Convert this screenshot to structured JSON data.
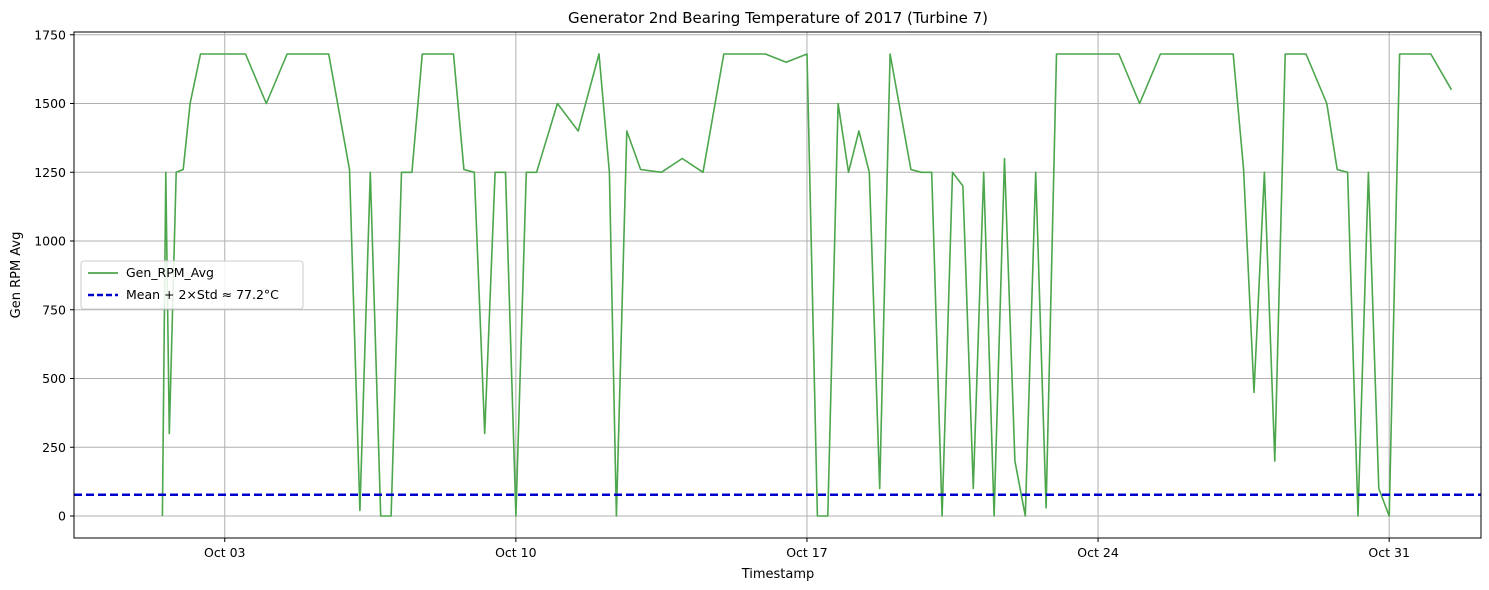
{
  "chart_data": {
    "type": "line",
    "title": "Generator 2nd Bearing Temperature of 2017 (Turbine 7)",
    "xlabel": "Timestamp",
    "ylabel": "Gen RPM Avg",
    "xlim": [
      "2017-09-29T09:00",
      "2017-11-02T05:00"
    ],
    "ylim": [
      -80,
      1760
    ],
    "x_ticks": [
      {
        "date": "2017-10-03",
        "label": "Oct 03"
      },
      {
        "date": "2017-10-10",
        "label": "Oct 10"
      },
      {
        "date": "2017-10-17",
        "label": "Oct 17"
      },
      {
        "date": "2017-10-24",
        "label": "Oct 24"
      },
      {
        "date": "2017-10-31",
        "label": "Oct 31"
      }
    ],
    "y_ticks": [
      0,
      250,
      500,
      750,
      1000,
      1250,
      1500,
      1750
    ],
    "grid": true,
    "legend_position": "center-left",
    "series": [
      {
        "name": "Gen_RPM_Avg",
        "color": "#4ca64c",
        "style": "solid",
        "x": [
          "2017-10-01T12:00",
          "2017-10-01T14:00",
          "2017-10-01T16:00",
          "2017-10-01T20:00",
          "2017-10-02T00:00",
          "2017-10-02T04:00",
          "2017-10-02T10:00",
          "2017-10-02T18:00",
          "2017-10-03T00:00",
          "2017-10-03T12:00",
          "2017-10-04T00:00",
          "2017-10-04T12:00",
          "2017-10-05T00:00",
          "2017-10-05T12:00",
          "2017-10-06T00:00",
          "2017-10-06T06:00",
          "2017-10-06T12:00",
          "2017-10-06T18:00",
          "2017-10-07T00:00",
          "2017-10-07T06:00",
          "2017-10-07T12:00",
          "2017-10-07T18:00",
          "2017-10-08T00:00",
          "2017-10-08T12:00",
          "2017-10-08T18:00",
          "2017-10-09T00:00",
          "2017-10-09T06:00",
          "2017-10-09T12:00",
          "2017-10-09T18:00",
          "2017-10-10T00:00",
          "2017-10-10T06:00",
          "2017-10-10T12:00",
          "2017-10-11T00:00",
          "2017-10-11T12:00",
          "2017-10-12T00:00",
          "2017-10-12T06:00",
          "2017-10-12T10:00",
          "2017-10-12T16:00",
          "2017-10-13T00:00",
          "2017-10-13T12:00",
          "2017-10-14T00:00",
          "2017-10-14T12:00",
          "2017-10-15T00:00",
          "2017-10-15T12:00",
          "2017-10-16T00:00",
          "2017-10-16T12:00",
          "2017-10-17T00:00",
          "2017-10-17T06:00",
          "2017-10-17T12:00",
          "2017-10-17T18:00",
          "2017-10-18T00:00",
          "2017-10-18T06:00",
          "2017-10-18T12:00",
          "2017-10-18T18:00",
          "2017-10-19T00:00",
          "2017-10-19T12:00",
          "2017-10-19T18:00",
          "2017-10-20T00:00",
          "2017-10-20T06:00",
          "2017-10-20T12:00",
          "2017-10-20T18:00",
          "2017-10-21T00:00",
          "2017-10-21T06:00",
          "2017-10-21T12:00",
          "2017-10-21T18:00",
          "2017-10-22T00:00",
          "2017-10-22T06:00",
          "2017-10-22T12:00",
          "2017-10-22T18:00",
          "2017-10-23T00:00",
          "2017-10-23T12:00",
          "2017-10-24T00:00",
          "2017-10-24T12:00",
          "2017-10-25T00:00",
          "2017-10-25T12:00",
          "2017-10-26T00:00",
          "2017-10-26T12:00",
          "2017-10-27T00:00",
          "2017-10-27T06:00",
          "2017-10-27T12:00",
          "2017-10-27T18:00",
          "2017-10-28T00:00",
          "2017-10-28T06:00",
          "2017-10-28T12:00",
          "2017-10-29T00:00",
          "2017-10-29T12:00",
          "2017-10-29T18:00",
          "2017-10-30T00:00",
          "2017-10-30T06:00",
          "2017-10-30T12:00",
          "2017-10-30T18:00",
          "2017-10-31T00:00",
          "2017-10-31T06:00",
          "2017-10-31T12:00",
          "2017-11-01T00:00",
          "2017-11-01T12:00"
        ],
        "values": [
          0,
          1250,
          300,
          1250,
          1260,
          1500,
          1680,
          1680,
          1680,
          1680,
          1500,
          1680,
          1680,
          1680,
          1260,
          20,
          1250,
          0,
          0,
          1250,
          1250,
          1680,
          1680,
          1680,
          1260,
          1250,
          300,
          1250,
          1250,
          0,
          1250,
          1250,
          1500,
          1400,
          1680,
          1250,
          0,
          1400,
          1260,
          1250,
          1300,
          1250,
          1680,
          1680,
          1680,
          1650,
          1680,
          0,
          0,
          1500,
          1250,
          1400,
          1250,
          100,
          1680,
          1260,
          1250,
          1250,
          0,
          1250,
          1200,
          100,
          1250,
          0,
          1300,
          200,
          0,
          1250,
          30,
          1680,
          1680,
          1680,
          1680,
          1500,
          1680,
          1680,
          1680,
          1680,
          1680,
          1260,
          450,
          1250,
          200,
          1680,
          1680,
          1500,
          1260,
          1250,
          0,
          1250,
          100,
          0,
          1680,
          1680,
          1680,
          1550
        ]
      },
      {
        "name": "Mean + 2×Std ≈ 77.2°C",
        "color": "#0000cc",
        "style": "dashed",
        "constant_y": 77.2
      }
    ]
  }
}
